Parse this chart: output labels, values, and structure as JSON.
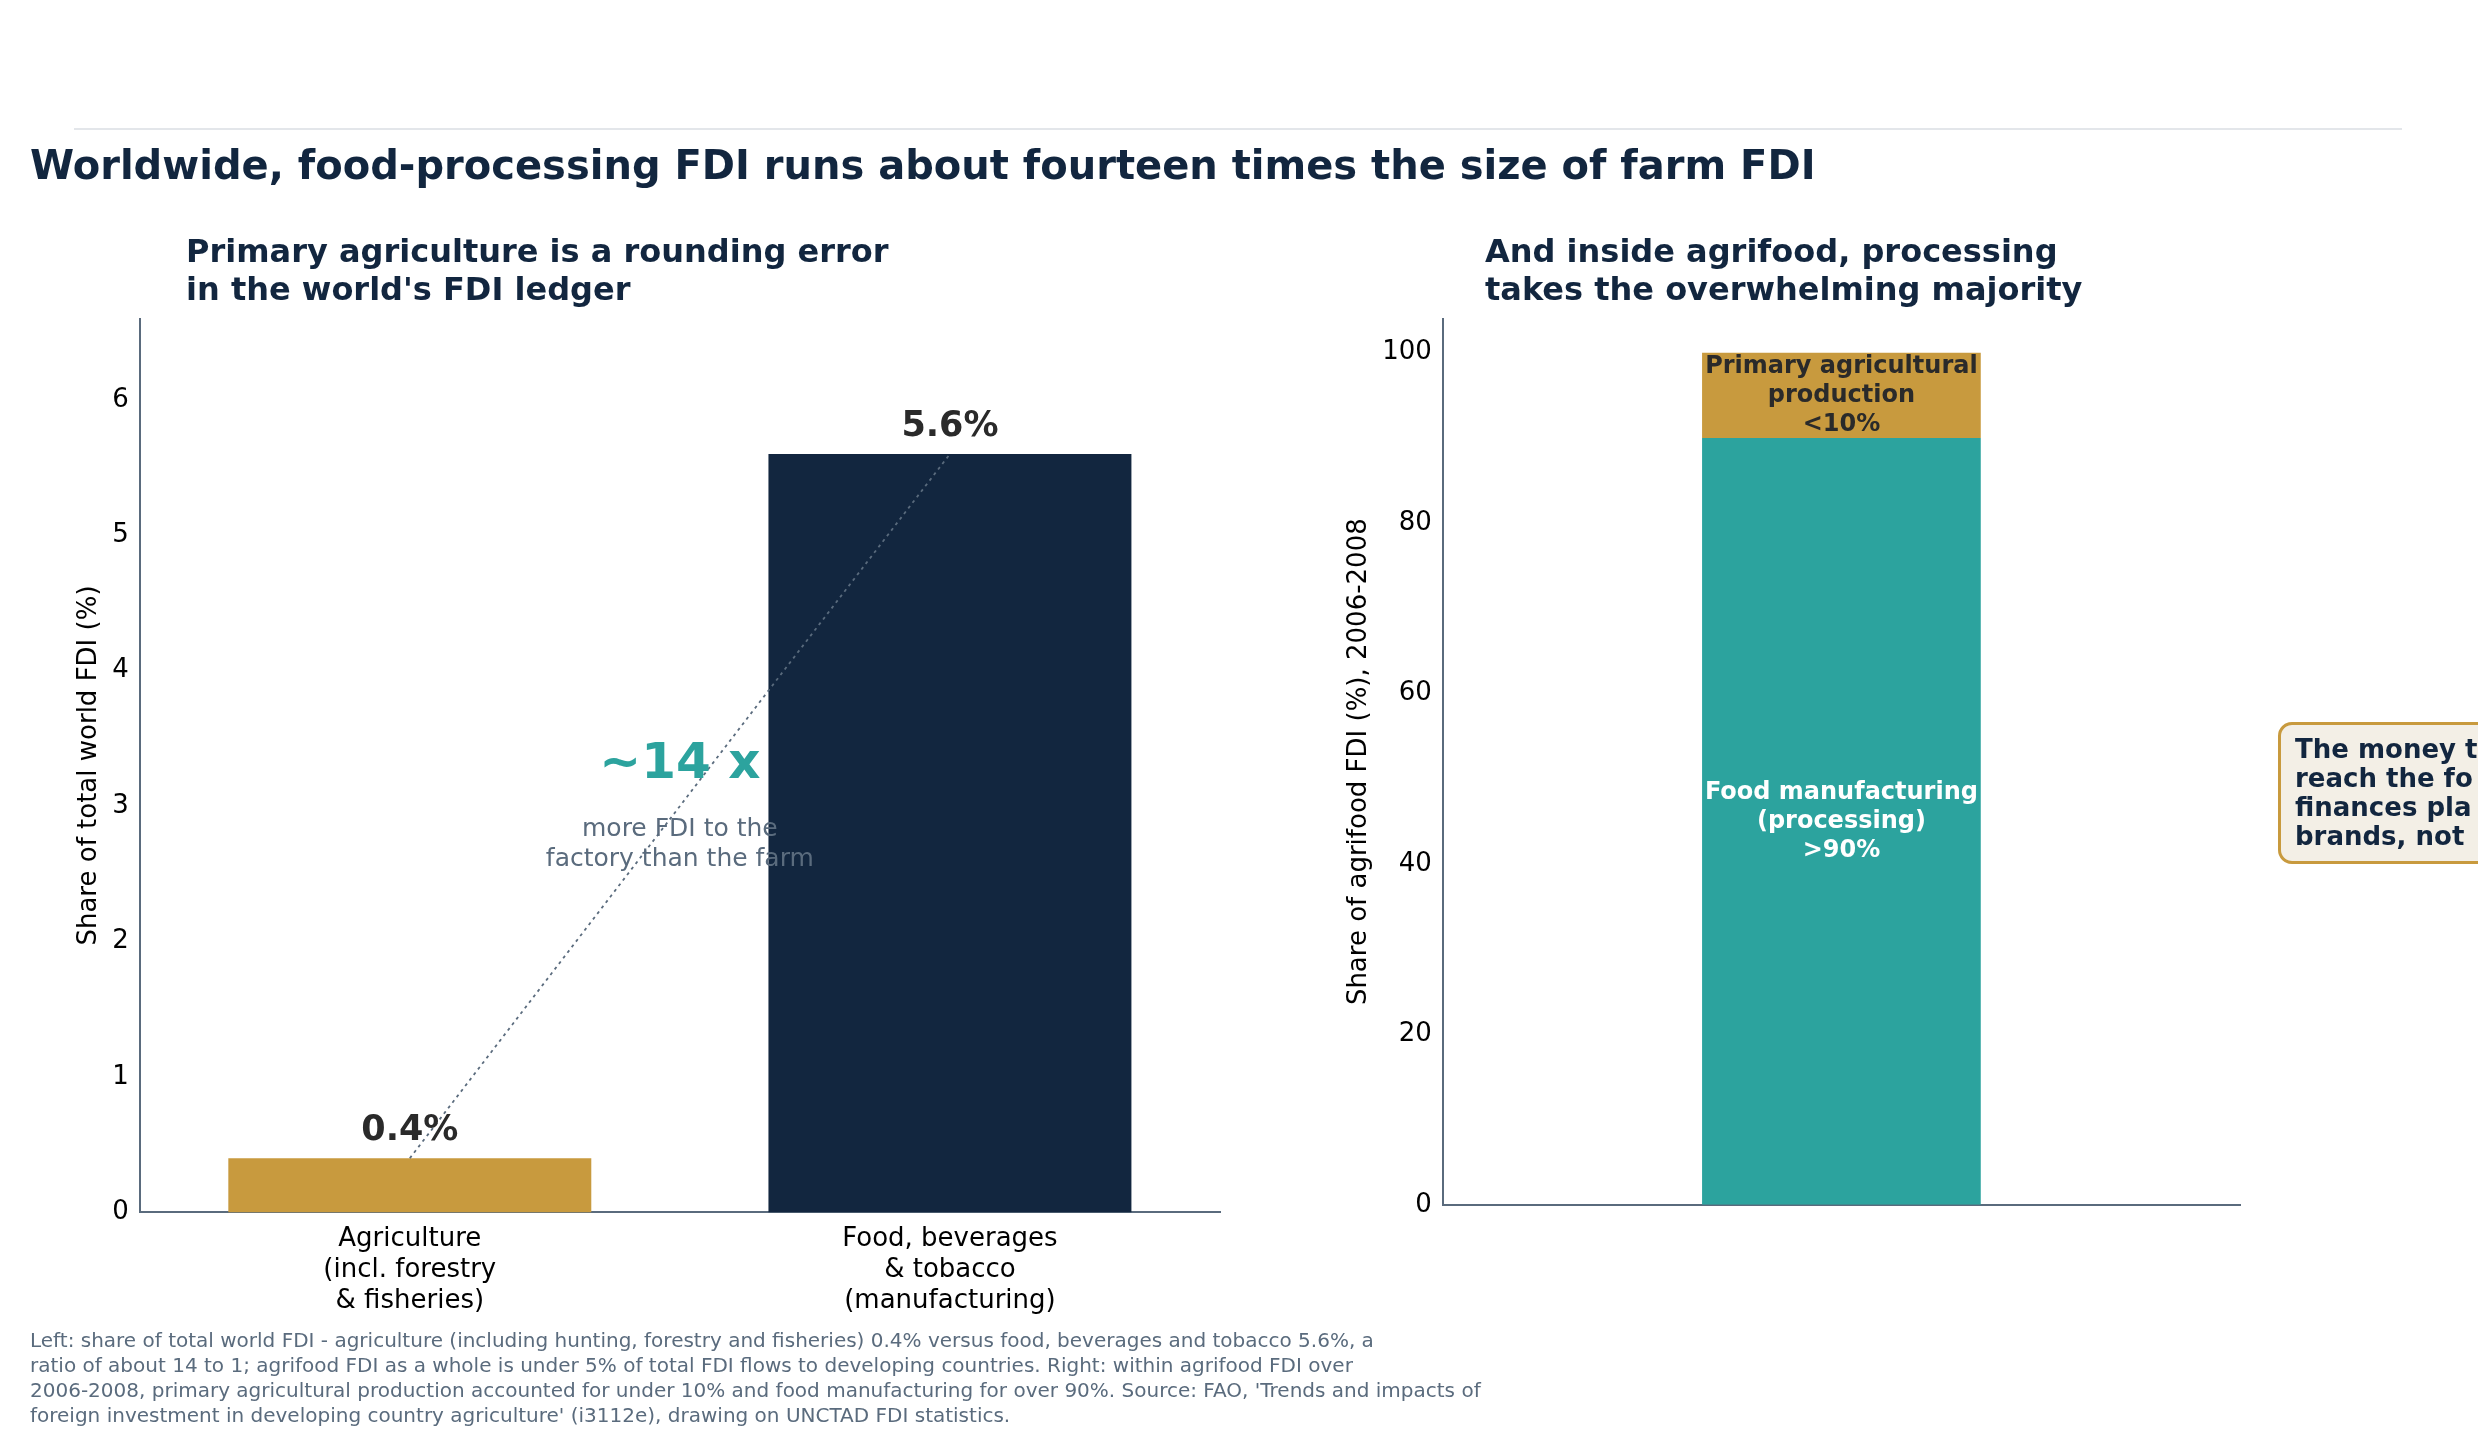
{
  "chart_data": [
    {
      "type": "bar",
      "title": "Worldwide, food-processing FDI runs about fourteen times the size of farm FDI",
      "subtitle": "Primary agriculture is a rounding error\nin the world's FDI ledger",
      "ylabel": "Share of total world FDI (%)",
      "categories": [
        "Agriculture\n(incl. forestry\n& fisheries)",
        "Food, beverages\n& tobacco\n(manufacturing)"
      ],
      "series": [
        {
          "colors": [
            "#c89a3e",
            "#12263f"
          ],
          "values": [
            0.4,
            5.6
          ],
          "value_labels": [
            "0.4%",
            "5.6%"
          ]
        },
        {
          "type": "line",
          "color": "#5a6b7d",
          "values": [
            0.4,
            5.6
          ],
          "line_style": "dotted"
        }
      ],
      "ylim": [
        0,
        6.6
      ],
      "yticks": [
        0,
        1,
        2,
        3,
        4,
        5,
        6
      ],
      "grid": false,
      "legend": false,
      "annotations": [
        "~14 x",
        "more FDI to the\nfactory than the farm",
        "Left: share of total world FDI - agriculture (including hunting, forestry and fisheries) 0.4% versus food, beverages and tobacco 5.6%, a\nratio of about 14 to 1; agrifood FDI as a whole is under 5% of total FDI flows to developing countries. Right: within agrifood FDI over\n2006-2008, primary agricultural production accounted for under 10% and food manufacturing for over 90%. Source: FAO, 'Trends and impacts of\nforeign investment in developing country agriculture' (i3112e), drawing on UNCTAD FDI statistics."
      ]
    },
    {
      "type": "bar",
      "stacked": true,
      "subtitle": "And inside agrifood, processing\ntakes the overwhelming majority",
      "ylabel": "Share of agrifood FDI (%), 2006-2008",
      "categories": [
        null
      ],
      "series": [
        {
          "name": "Food manufacturing\n(processing)",
          "color": "#2ca39e",
          "values": [
            90
          ],
          "value_labels": [
            ">90%"
          ]
        },
        {
          "name": "Primary agricultural\nproduction",
          "color": "#c89a3e",
          "values": [
            10
          ],
          "value_labels": [
            "<10%"
          ]
        }
      ],
      "ylim": [
        0,
        104
      ],
      "yticks": [
        0,
        20,
        40,
        60,
        80,
        100
      ],
      "grid": false,
      "legend": false,
      "annotations": [
        "The money t\nreach the fo\nfinances pla\nbrands, not"
      ]
    }
  ]
}
